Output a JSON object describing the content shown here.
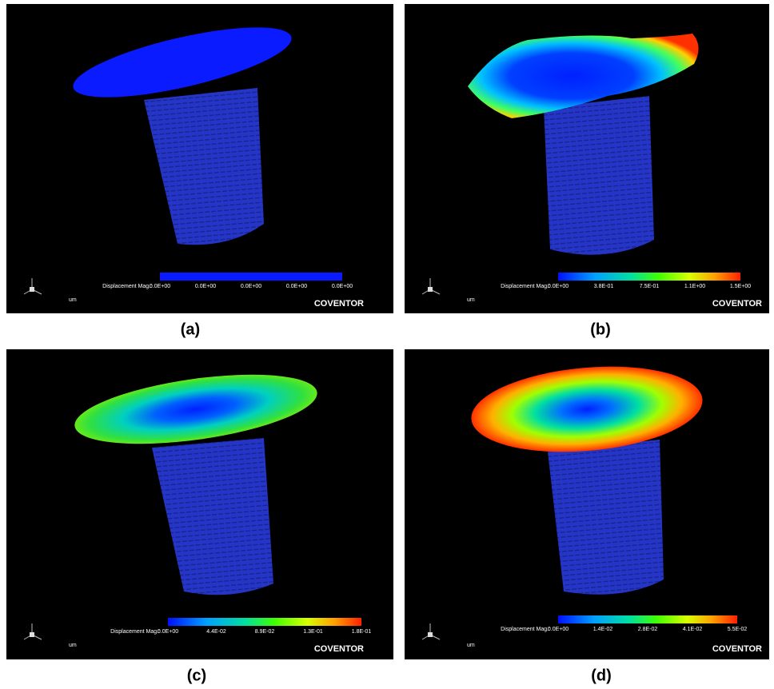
{
  "panels": [
    {
      "label": "(a)",
      "legend_title": "Displacement Mag.:",
      "ticks": [
        "0.0E+00",
        "0.0E+00",
        "0.0E+00",
        "0.0E+00",
        "0.0E+00"
      ],
      "unit": "um",
      "brand": "COVENTOR"
    },
    {
      "label": "(b)",
      "legend_title": "Displacement Mag.:",
      "ticks": [
        "0.0E+00",
        "3.8E-01",
        "7.5E-01",
        "1.1E+00",
        "1.5E+00"
      ],
      "unit": "um",
      "brand": "COVENTOR"
    },
    {
      "label": "(c)",
      "legend_title": "Displacement Mag.:",
      "ticks": [
        "0.0E+00",
        "4.4E-02",
        "8.9E-02",
        "1.3E-01",
        "1.8E-01"
      ],
      "unit": "um",
      "brand": "COVENTOR"
    },
    {
      "label": "(d)",
      "legend_title": "Displacement Mag.:",
      "ticks": [
        "0.0E+00",
        "1.4E-02",
        "2.8E-02",
        "4.1E-02",
        "5.5E-02"
      ],
      "unit": "um",
      "brand": "COVENTOR"
    }
  ]
}
